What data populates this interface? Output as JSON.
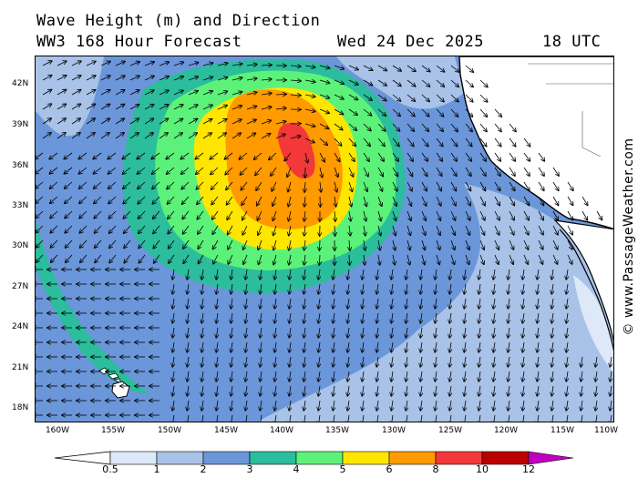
{
  "header": {
    "title": "Wave Height (m) and Direction",
    "model": "WW3 168 Hour Forecast",
    "date": "Wed 24 Dec 2025",
    "time": "18 UTC"
  },
  "credit": "© www.PassageWeather.com",
  "lat_ticks": [
    "42N",
    "39N",
    "36N",
    "33N",
    "30N",
    "27N",
    "24N",
    "21N",
    "18N"
  ],
  "lon_ticks": [
    "160W",
    "155W",
    "150W",
    "145W",
    "140W",
    "135W",
    "130W",
    "125W",
    "120W",
    "115W",
    "110W"
  ],
  "legend": {
    "labels": [
      "0.5",
      "1",
      "2",
      "3",
      "4",
      "5",
      "6",
      "8",
      "10",
      "12"
    ],
    "colors": [
      "#dde8f8",
      "#a8c2e8",
      "#6b96d9",
      "#2bbd9c",
      "#5cf27a",
      "#ffe600",
      "#ff9a00",
      "#f23838",
      "#bb0000",
      "#c000c0"
    ]
  },
  "map": {
    "ocean_color": "#6b96d9",
    "land_color": "#ffffff",
    "features": [
      "Hawaii",
      "California",
      "Baja California"
    ],
    "wave_center_label": "peak 8-10 m near 37N 139W"
  }
}
